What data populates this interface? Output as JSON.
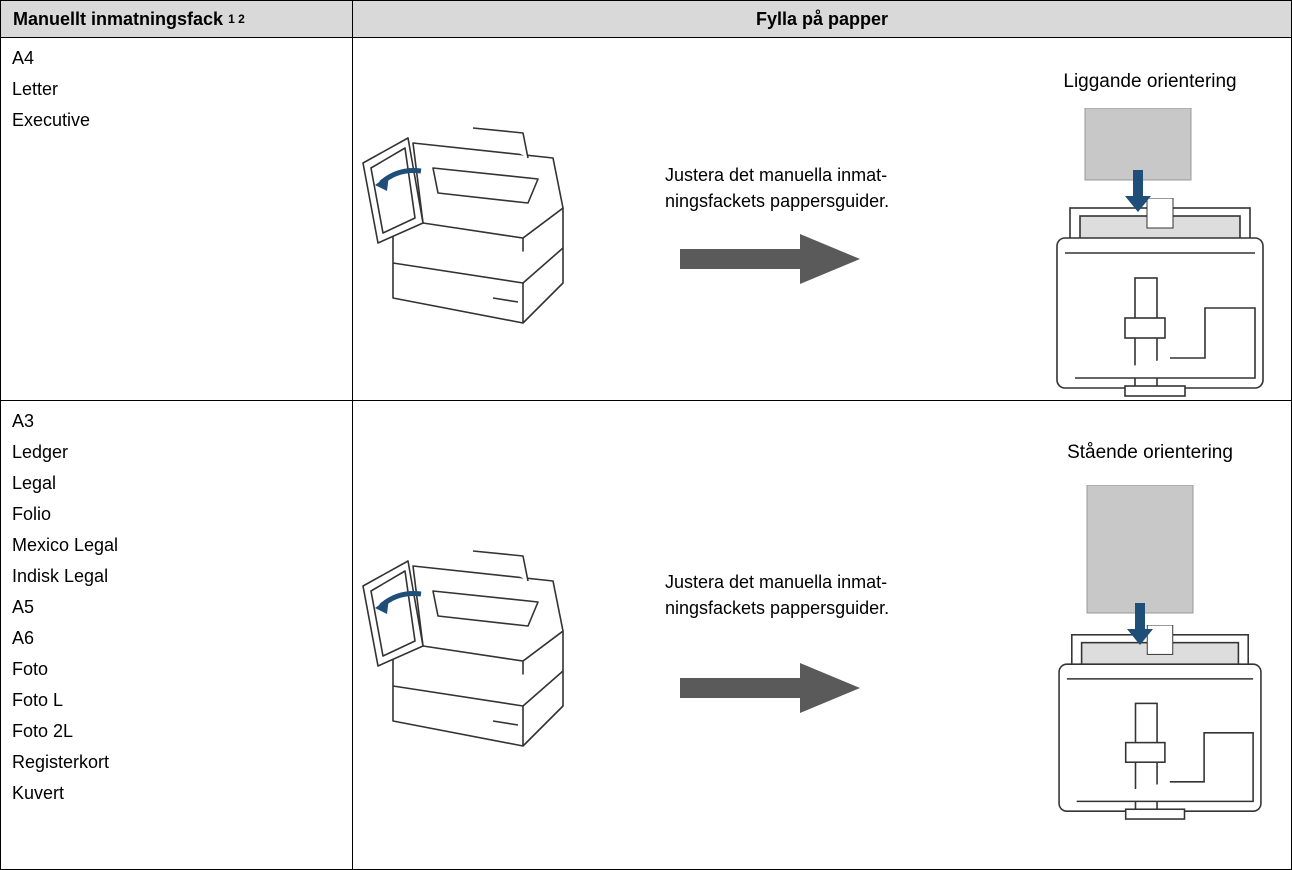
{
  "table": {
    "headers": [
      "Manuellt inmatningsfack",
      "Fylla på papper"
    ],
    "header_footnotes": "1 2",
    "rows": [
      {
        "sizes": [
          "A4",
          "Letter",
          "Executive"
        ],
        "instruction": [
          "Justera det manuella inmat-",
          "ningsfackets pappersguider."
        ],
        "orientation": "Liggande orientering"
      },
      {
        "sizes": [
          "A3",
          "Ledger",
          "Legal",
          "Folio",
          "Mexico Legal",
          "Indisk Legal",
          "A5",
          "A6",
          "Foto",
          "Foto L",
          "Foto 2L",
          "Registerkort",
          "Kuvert"
        ],
        "instruction": [
          "Justera det manuella inmat-",
          "ningsfackets pappersguider."
        ],
        "orientation": "Stående orientering"
      }
    ]
  }
}
